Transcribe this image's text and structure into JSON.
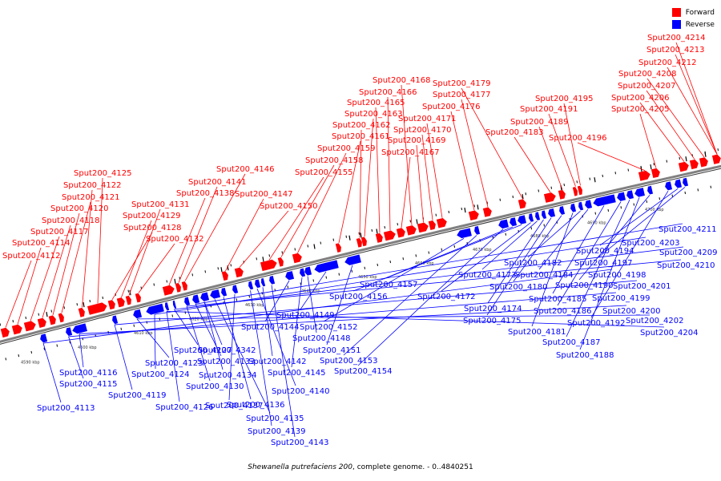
{
  "legend": {
    "forward_label": "Forward",
    "reverse_label": "Reverse",
    "forward_color": "#ff0000",
    "reverse_color": "#0000ff"
  },
  "caption": {
    "organism": "Shewanella putrefaciens 200",
    "suffix": ", complete genome. - 0..4840251"
  },
  "scale": {
    "ticks": [
      "4590 kbp",
      "4600 kbp",
      "4610 kbp",
      "4620 kbp",
      "4630 kbp",
      "4640 kbp",
      "4650 kbp",
      "4660 kbp",
      "4670 kbp",
      "4680 kbp",
      "4690 kbp",
      "4700 kbp"
    ]
  },
  "forward_genes": [
    "Sput200_4112",
    "Sput200_4114",
    "Sput200_4117",
    "Sput200_4118",
    "Sput200_4120",
    "Sput200_4121",
    "Sput200_4122",
    "Sput200_4125",
    "Sput200_4128",
    "Sput200_4129",
    "Sput200_4131",
    "Sput200_4132",
    "Sput200_4138",
    "Sput200_4141",
    "Sput200_4146",
    "Sput200_4147",
    "Sput200_4150",
    "Sput200_4155",
    "Sput200_4158",
    "Sput200_4159",
    "Sput200_4161",
    "Sput200_4162",
    "Sput200_4163",
    "Sput200_4165",
    "Sput200_4166",
    "Sput200_4167",
    "Sput200_4168",
    "Sput200_4169",
    "Sput200_4170",
    "Sput200_4171",
    "Sput200_4176",
    "Sput200_4177",
    "Sput200_4179",
    "Sput200_4183",
    "Sput200_4189",
    "Sput200_4191",
    "Sput200_4195",
    "Sput200_4196",
    "Sput200_4205",
    "Sput200_4206",
    "Sput200_4207",
    "Sput200_4208",
    "Sput200_4212",
    "Sput200_4213",
    "Sput200_4214"
  ],
  "reverse_genes": [
    "Sput200_4113",
    "Sput200_4115",
    "Sput200_4116",
    "Sput200_4119",
    "Sput200_4123",
    "Sput200_4124",
    "Sput200_4126",
    "Sput200_4127",
    "Sput200_4130",
    "Sput200_4133",
    "Sput200_4134",
    "Sput200_4135",
    "Sput200_4136",
    "Sput200_4137",
    "Sput200_4139",
    "Sput200_4140",
    "Sput200_4142",
    "Sput200_4143",
    "Sput200_4144",
    "Sput200_4145",
    "Sput200_4148",
    "Sput200_4149",
    "Sput200_4151",
    "Sput200_4152",
    "Sput200_4153",
    "Sput200_4154",
    "Sput200_4156",
    "Sput200_4157",
    "Sput200_4172",
    "Sput200_4173",
    "Sput200_4174",
    "Sput200_4175",
    "Sput200_4180",
    "Sput200_4181",
    "Sput200_4182",
    "Sput200_4184",
    "Sput200_4185",
    "Sput200_4186",
    "Sput200_4187",
    "Sput200_4188",
    "Sput200_4190",
    "Sput200_4192",
    "Sput200_4194",
    "Sput200_4197",
    "Sput200_4198",
    "Sput200_4199",
    "Sput200_4200",
    "Sput200_4201",
    "Sput200_4202",
    "Sput200_4203",
    "Sput200_4204",
    "Sput200_4209",
    "Sput200_4210",
    "Sput200_4211",
    "Sput200_4342"
  ]
}
